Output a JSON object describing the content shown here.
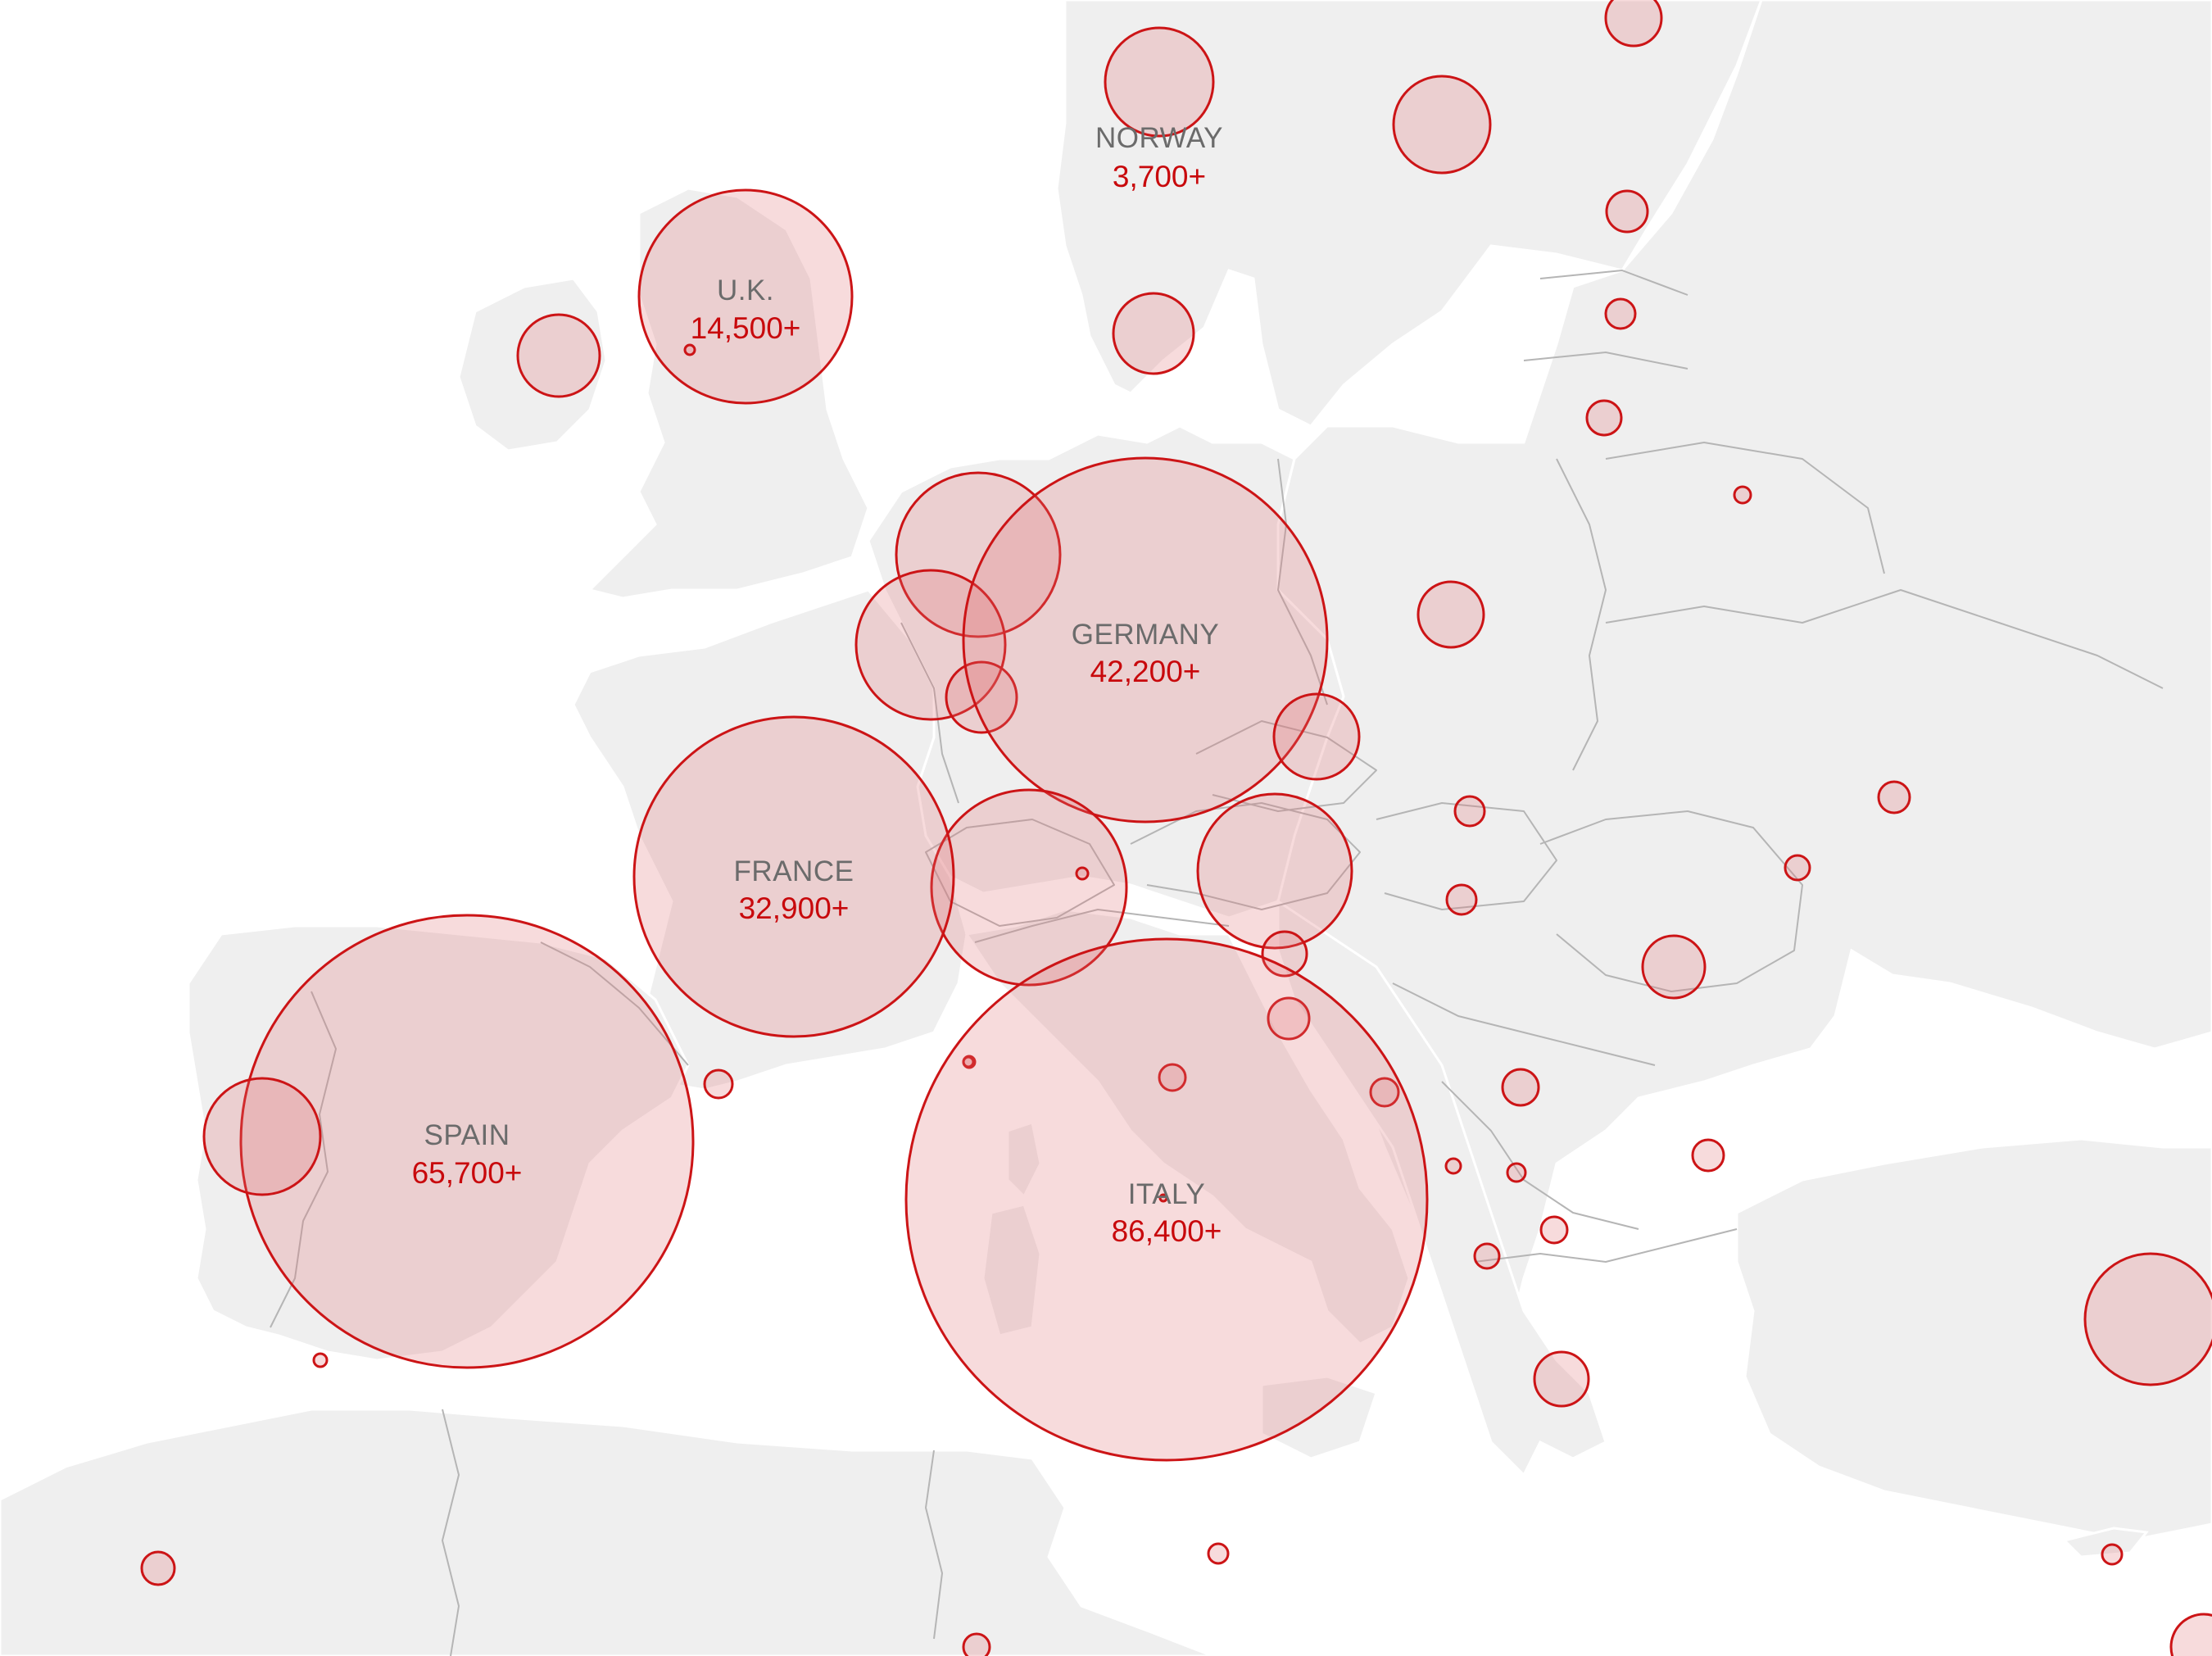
{
  "map": {
    "colors": {
      "land": "#efefef",
      "border": "#b5b5b5",
      "bubble_fill": "#df6e73",
      "bubble_stroke": "#cc1416",
      "name_text": "#6b6b6b",
      "count_text": "#c8090c"
    },
    "labeled_countries": [
      {
        "id": "norway",
        "name": "NORWAY",
        "count": "3,700+"
      },
      {
        "id": "uk",
        "name": "U.K.",
        "count": "14,500+"
      },
      {
        "id": "germany",
        "name": "GERMANY",
        "count": "42,200+"
      },
      {
        "id": "france",
        "name": "FRANCE",
        "count": "32,900+"
      },
      {
        "id": "spain",
        "name": "SPAIN",
        "count": "65,700+"
      },
      {
        "id": "italy",
        "name": "ITALY",
        "count": "86,400+"
      }
    ]
  }
}
